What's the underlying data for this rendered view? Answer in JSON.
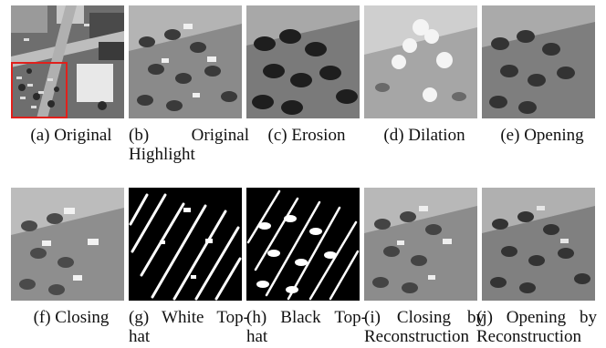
{
  "figure": {
    "panels": [
      {
        "id": "a",
        "caption": "(a) Original"
      },
      {
        "id": "b",
        "caption": "(b) Original Highlight"
      },
      {
        "id": "c",
        "caption": "(c) Erosion"
      },
      {
        "id": "d",
        "caption": "(d) Dilation"
      },
      {
        "id": "e",
        "caption": "(e) Opening"
      },
      {
        "id": "f",
        "caption": "(f) Closing"
      },
      {
        "id": "g",
        "caption": "(g) White Top-hat"
      },
      {
        "id": "h",
        "caption": "(h) Black Top-hat"
      },
      {
        "id": "i",
        "caption": "(i) Closing by Reconstruction"
      },
      {
        "id": "j",
        "caption": "(j) Opening by Reconstruction"
      }
    ],
    "highlight_color": "#e0201c"
  }
}
